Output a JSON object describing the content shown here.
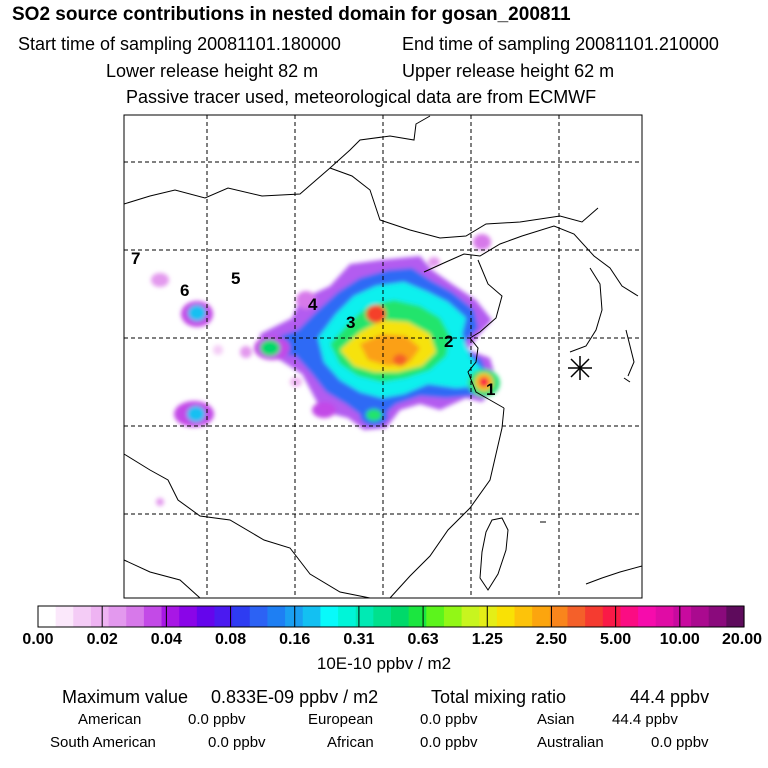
{
  "header": {
    "title": "SO2 source contributions in nested domain for gosan_200811",
    "start_time": "Start time of sampling 20081101.180000",
    "end_time": "End time of sampling 20081101.210000",
    "lower_height": "Lower release height   82 m",
    "upper_height": "Upper release height   62 m",
    "tracer_note": "Passive tracer used, meteorological data are from ECMWF"
  },
  "map": {
    "markers": [
      "1",
      "2",
      "3",
      "4",
      "5",
      "6",
      "7"
    ],
    "receptor": "gosan-receptor-asterisk"
  },
  "legend": {
    "ticks": [
      "0.00",
      "0.02",
      "0.04",
      "0.08",
      "0.16",
      "0.31",
      "0.63",
      "1.25",
      "2.50",
      "5.00",
      "10.00",
      "20.00"
    ],
    "colors": [
      "#ffffff",
      "#fbe8fb",
      "#f4ccf6",
      "#eeb3f2",
      "#e399ee",
      "#d779ea",
      "#c34ae7",
      "#a817e5",
      "#8a05e8",
      "#6505ec",
      "#4b1af0",
      "#2e3cf2",
      "#2c62f4",
      "#1e7ff3",
      "#1a9ff2",
      "#13c0f2",
      "#08fafa",
      "#00f5d8",
      "#00eab4",
      "#00e18d",
      "#00d96a",
      "#1be640",
      "#5cf41c",
      "#92f716",
      "#c8f51f",
      "#e4ee17",
      "#f9e105",
      "#fdc30a",
      "#fca50e",
      "#f9851c",
      "#f4602a",
      "#f53b30",
      "#fa1a47",
      "#fb0c83",
      "#f60cac",
      "#e00ca5",
      "#c80a9f",
      "#aa0a8f",
      "#8a0a7c",
      "#5e0b5c"
    ],
    "units": "10E-10 ppbv / m2"
  },
  "footer": {
    "max_label": "Maximum value",
    "max_value": "0.833E-09 ppbv / m2",
    "total_label": "Total mixing ratio",
    "total_value": "44.4 ppbv",
    "american_label": "American",
    "american_value": "0.0 ppbv",
    "european_label": "European",
    "european_value": "0.0 ppbv",
    "asian_label": "Asian",
    "asian_value": "44.4 ppbv",
    "south_american_label": "South American",
    "south_american_value": "0.0 ppbv",
    "african_label": "African",
    "african_value": "0.0 ppbv",
    "australian_label": "Australian",
    "australian_value": "0.0 ppbv"
  }
}
